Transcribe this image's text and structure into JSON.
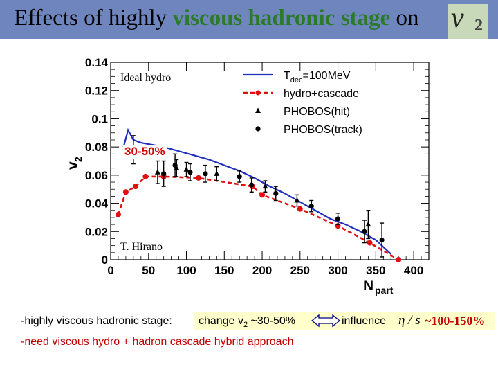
{
  "header": {
    "title_pre": "Effects of highly ",
    "title_highlight": "viscous hadronic stage",
    "title_post": " on",
    "v2_symbol": "v",
    "v2_subscript": "2"
  },
  "chart_data": {
    "type": "scatter",
    "xlabel": "N",
    "xlabel_sub": "part",
    "ylabel": "v",
    "ylabel_sub": "2",
    "xlim": [
      0,
      420
    ],
    "ylim": [
      0,
      0.14
    ],
    "x_ticks": [
      0,
      50,
      100,
      150,
      200,
      250,
      300,
      350,
      400
    ],
    "x_tick_labels": [
      "0",
      "50",
      "100",
      "150",
      "200",
      "250",
      "300",
      "350",
      "400"
    ],
    "y_ticks": [
      0,
      0.02,
      0.04,
      0.06,
      0.08,
      0.1,
      0.12,
      0.14
    ],
    "y_tick_labels": [
      "0",
      "0.02",
      "0.04",
      "0.06",
      "0.08",
      "0.1",
      "0.12",
      "0.14"
    ],
    "legend": [
      {
        "label": "T",
        "sub": "dec",
        "suffix": "=100MeV",
        "style": "line",
        "color": "#1f2fbf"
      },
      {
        "label": "hydro+cascade",
        "style": "dashed-dots",
        "color": "#e01010"
      },
      {
        "label": "PHOBOS(hit)",
        "style": "triangle",
        "color": "#000000"
      },
      {
        "label": "PHOBOS(track)",
        "style": "circle",
        "color": "#000000"
      }
    ],
    "series": [
      {
        "name": "Ideal hydro (Tdec=100MeV)",
        "type": "line",
        "x": [
          17,
          23,
          30,
          40,
          50,
          60,
          70,
          90,
          110,
          130,
          150,
          170,
          190,
          210,
          230,
          250,
          270,
          290,
          310,
          330,
          350,
          362,
          370
        ],
        "y": [
          0.08,
          0.092,
          0.085,
          0.083,
          0.082,
          0.081,
          0.08,
          0.077,
          0.074,
          0.071,
          0.067,
          0.063,
          0.058,
          0.052,
          0.047,
          0.041,
          0.035,
          0.029,
          0.025,
          0.02,
          0.014,
          0.008,
          0.004
        ]
      },
      {
        "name": "hydro+cascade",
        "type": "line-points",
        "x": [
          10,
          20,
          33,
          46,
          70,
          116,
          187,
          200,
          250,
          300,
          342,
          380
        ],
        "y": [
          0.032,
          0.048,
          0.052,
          0.059,
          0.059,
          0.058,
          0.052,
          0.046,
          0.036,
          0.024,
          0.012,
          0.0
        ]
      },
      {
        "name": "PHOBOS(hit)",
        "x": [
          62,
          87,
          100,
          140,
          204,
          246,
          340
        ],
        "y": [
          0.062,
          0.065,
          0.064,
          0.061,
          0.052,
          0.042,
          0.025
        ],
        "err": [
          0.008,
          0.006,
          0.005,
          0.005,
          0.004,
          0.004,
          0.01
        ]
      },
      {
        "name": "PHOBOS(track)",
        "x": [
          30,
          70,
          85,
          105,
          125,
          170,
          186,
          218,
          265,
          300,
          335,
          358
        ],
        "y": [
          0.078,
          0.061,
          0.067,
          0.062,
          0.061,
          0.059,
          0.053,
          0.047,
          0.038,
          0.029,
          0.02,
          0.014
        ],
        "err": [
          0.01,
          0.009,
          0.008,
          0.006,
          0.006,
          0.004,
          0.005,
          0.005,
          0.004,
          0.004,
          0.008,
          0.012
        ]
      }
    ]
  },
  "annotations": {
    "ideal_hydro": "Ideal hydro",
    "centrality": "30-50%",
    "author": "T. Hirano"
  },
  "bullets": {
    "line1_prefix": "-highly viscous hadronic stage:",
    "change_pre": "change v",
    "change_sub": "2",
    "change_post": " ~30-50%",
    "influence": "influence",
    "eta_s": "η / s",
    "range": "~100-150%",
    "line2": "-need viscous hydro + hadron cascade hybrid approach"
  },
  "colors": {
    "title_bar": "#6e86bd",
    "title_highlight": "#2a7a2a",
    "ideal": "#1f2fbf",
    "cascade": "#e01010",
    "emphasis": "#c00000",
    "highlight_box": "#ffffcc"
  }
}
